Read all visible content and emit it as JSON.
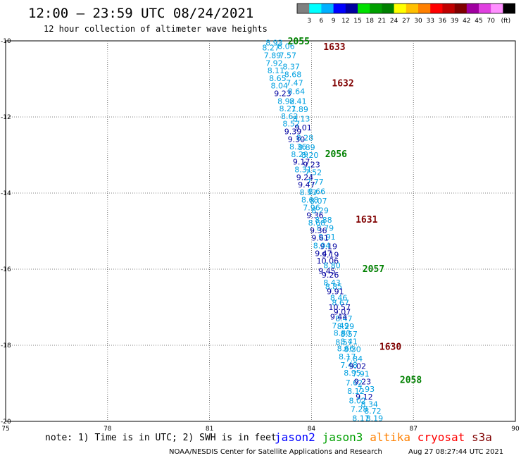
{
  "title": "12:00 – 23:59 UTC 08/24/2021",
  "subtitle": "12 hour collection of altimeter wave heights",
  "colorbar": {
    "colors": [
      "#808080",
      "#00ffff",
      "#00b0ff",
      "#0000ff",
      "#0000a0",
      "#00e000",
      "#00a000",
      "#008000",
      "#ffff00",
      "#ffc000",
      "#ff8000",
      "#ff0000",
      "#c00000",
      "#800000",
      "#a000a0",
      "#e040e0",
      "#ff90ff",
      "#000000"
    ],
    "labels": [
      "3",
      "6",
      "9",
      "12",
      "15",
      "18",
      "21",
      "24",
      "27",
      "30",
      "33",
      "36",
      "39",
      "42",
      "45",
      "70"
    ],
    "unit": "(ft)"
  },
  "note": "note: 1) Time is in UTC; 2) SWH is in feet",
  "satellites": [
    {
      "name": "jason2",
      "color": "#0000ff"
    },
    {
      "name": "jason3",
      "color": "#00a000"
    },
    {
      "name": "altika",
      "color": "#ff8000"
    },
    {
      "name": "cryosat",
      "color": "#ff0000"
    },
    {
      "name": "s3a",
      "color": "#800000"
    }
  ],
  "credit": "NOAA/NESDIS Center for Satellite Applications and Research",
  "timestamp": "Aug 27 08:27:44 UTC 2021",
  "chart_data": {
    "type": "scatter",
    "xlim": [
      75,
      90
    ],
    "ylim": [
      -20,
      -10
    ],
    "x_ticks": [
      "75",
      "78",
      "81",
      "84",
      "87",
      "90"
    ],
    "y_ticks": [
      "-10",
      "-12",
      "-14",
      "-16",
      "-18",
      "-20"
    ],
    "grid": true,
    "light_color": "#00a0e0",
    "dark_color": "#0000a0",
    "points": [
      {
        "x": 82.65,
        "y": -10.05,
        "v": "8.93",
        "c": "light"
      },
      {
        "x": 83.0,
        "y": -10.14,
        "v": "8.06",
        "c": "light"
      },
      {
        "x": 82.55,
        "y": -10.18,
        "v": "8.27",
        "c": "light"
      },
      {
        "x": 82.6,
        "y": -10.38,
        "v": "7.89",
        "c": "light"
      },
      {
        "x": 83.05,
        "y": -10.38,
        "v": "7.57",
        "c": "light"
      },
      {
        "x": 82.65,
        "y": -10.58,
        "v": "7.92",
        "c": "light"
      },
      {
        "x": 83.15,
        "y": -10.68,
        "v": "8.37",
        "c": "light"
      },
      {
        "x": 82.7,
        "y": -10.78,
        "v": "8.11",
        "c": "light"
      },
      {
        "x": 83.2,
        "y": -10.88,
        "v": "8.68",
        "c": "light"
      },
      {
        "x": 82.75,
        "y": -10.98,
        "v": "8.65",
        "c": "light"
      },
      {
        "x": 83.25,
        "y": -11.1,
        "v": "7.47",
        "c": "light"
      },
      {
        "x": 82.8,
        "y": -11.18,
        "v": "8.04",
        "c": "light"
      },
      {
        "x": 82.9,
        "y": -11.38,
        "v": "9.23",
        "c": "dark"
      },
      {
        "x": 83.3,
        "y": -11.32,
        "v": "8.64",
        "c": "light"
      },
      {
        "x": 83.0,
        "y": -11.58,
        "v": "8.92",
        "c": "light"
      },
      {
        "x": 83.35,
        "y": -11.58,
        "v": "8.41",
        "c": "light"
      },
      {
        "x": 83.05,
        "y": -11.78,
        "v": "8.21",
        "c": "light"
      },
      {
        "x": 83.4,
        "y": -11.8,
        "v": "7.89",
        "c": "light"
      },
      {
        "x": 83.1,
        "y": -11.98,
        "v": "8.62",
        "c": "light"
      },
      {
        "x": 83.45,
        "y": -12.05,
        "v": "8.13",
        "c": "light"
      },
      {
        "x": 83.15,
        "y": -12.18,
        "v": "8.52",
        "c": "light"
      },
      {
        "x": 83.5,
        "y": -12.28,
        "v": "9.01",
        "c": "dark"
      },
      {
        "x": 83.2,
        "y": -12.38,
        "v": "9.39",
        "c": "dark"
      },
      {
        "x": 83.55,
        "y": -12.55,
        "v": "8.28",
        "c": "light"
      },
      {
        "x": 83.3,
        "y": -12.58,
        "v": "9.30",
        "c": "dark"
      },
      {
        "x": 83.35,
        "y": -12.78,
        "v": "8.36",
        "c": "light"
      },
      {
        "x": 83.6,
        "y": -12.8,
        "v": "8.89",
        "c": "light"
      },
      {
        "x": 83.4,
        "y": -12.98,
        "v": "8.29",
        "c": "light"
      },
      {
        "x": 83.7,
        "y": -13.0,
        "v": "8.20",
        "c": "light"
      },
      {
        "x": 83.45,
        "y": -13.18,
        "v": "9.17",
        "c": "dark"
      },
      {
        "x": 83.75,
        "y": -13.25,
        "v": "9.23",
        "c": "dark"
      },
      {
        "x": 83.5,
        "y": -13.38,
        "v": "8.31",
        "c": "light"
      },
      {
        "x": 83.8,
        "y": -13.45,
        "v": "7.52",
        "c": "light"
      },
      {
        "x": 83.55,
        "y": -13.58,
        "v": "9.24",
        "c": "dark"
      },
      {
        "x": 83.85,
        "y": -13.7,
        "v": "7.77",
        "c": "light"
      },
      {
        "x": 83.6,
        "y": -13.78,
        "v": "9.47",
        "c": "dark"
      },
      {
        "x": 83.9,
        "y": -13.95,
        "v": "8.66",
        "c": "light"
      },
      {
        "x": 83.65,
        "y": -13.98,
        "v": "8.53",
        "c": "light"
      },
      {
        "x": 83.95,
        "y": -14.2,
        "v": "8.07",
        "c": "light"
      },
      {
        "x": 83.7,
        "y": -14.18,
        "v": "8.68",
        "c": "light"
      },
      {
        "x": 83.75,
        "y": -14.38,
        "v": "7.96",
        "c": "light"
      },
      {
        "x": 84.0,
        "y": -14.45,
        "v": "8.29",
        "c": "light"
      },
      {
        "x": 83.85,
        "y": -14.58,
        "v": "9.36",
        "c": "dark"
      },
      {
        "x": 84.1,
        "y": -14.7,
        "v": "8.88",
        "c": "light"
      },
      {
        "x": 83.9,
        "y": -14.78,
        "v": "8.68",
        "c": "light"
      },
      {
        "x": 84.15,
        "y": -14.92,
        "v": "8.79",
        "c": "light"
      },
      {
        "x": 83.95,
        "y": -14.98,
        "v": "9.36",
        "c": "dark"
      },
      {
        "x": 84.2,
        "y": -15.15,
        "v": "9.91",
        "c": "light"
      },
      {
        "x": 84.0,
        "y": -15.18,
        "v": "9.61",
        "c": "dark"
      },
      {
        "x": 84.25,
        "y": -15.4,
        "v": "9.19",
        "c": "dark"
      },
      {
        "x": 84.05,
        "y": -15.38,
        "v": "8.94",
        "c": "light"
      },
      {
        "x": 84.1,
        "y": -15.58,
        "v": "9.47",
        "c": "dark"
      },
      {
        "x": 84.3,
        "y": -15.62,
        "v": "9.19",
        "c": "dark"
      },
      {
        "x": 84.15,
        "y": -15.78,
        "v": "10.06",
        "c": "dark"
      },
      {
        "x": 84.35,
        "y": -15.9,
        "v": "8.80",
        "c": "light"
      },
      {
        "x": 84.2,
        "y": -16.05,
        "v": "9.45",
        "c": "dark"
      },
      {
        "x": 84.3,
        "y": -16.15,
        "v": "9.26",
        "c": "dark"
      },
      {
        "x": 84.35,
        "y": -16.35,
        "v": "8.43",
        "c": "light"
      },
      {
        "x": 84.4,
        "y": -16.45,
        "v": "8.85",
        "c": "light"
      },
      {
        "x": 84.45,
        "y": -16.58,
        "v": "9.91",
        "c": "dark"
      },
      {
        "x": 84.55,
        "y": -16.75,
        "v": "8.46",
        "c": "light"
      },
      {
        "x": 84.6,
        "y": -16.88,
        "v": "8.67",
        "c": "light"
      },
      {
        "x": 84.5,
        "y": -17.0,
        "v": "10.57",
        "c": "dark"
      },
      {
        "x": 84.65,
        "y": -17.12,
        "v": "9.07",
        "c": "dark"
      },
      {
        "x": 84.7,
        "y": -17.3,
        "v": "8.47",
        "c": "light"
      },
      {
        "x": 84.55,
        "y": -17.25,
        "v": "9.44",
        "c": "dark"
      },
      {
        "x": 84.75,
        "y": -17.5,
        "v": "8.29",
        "c": "light"
      },
      {
        "x": 84.6,
        "y": -17.48,
        "v": "7.49",
        "c": "light"
      },
      {
        "x": 84.65,
        "y": -17.68,
        "v": "8.80",
        "c": "light"
      },
      {
        "x": 84.85,
        "y": -17.7,
        "v": "8.57",
        "c": "light"
      },
      {
        "x": 84.7,
        "y": -17.92,
        "v": "8.57",
        "c": "light"
      },
      {
        "x": 84.85,
        "y": -17.9,
        "v": "8.41",
        "c": "light"
      },
      {
        "x": 84.75,
        "y": -18.08,
        "v": "8.66",
        "c": "light"
      },
      {
        "x": 84.95,
        "y": -18.1,
        "v": "8.30",
        "c": "light"
      },
      {
        "x": 84.8,
        "y": -18.3,
        "v": "8.17",
        "c": "light"
      },
      {
        "x": 85.0,
        "y": -18.35,
        "v": "7.84",
        "c": "light"
      },
      {
        "x": 84.85,
        "y": -18.52,
        "v": "7.48",
        "c": "light"
      },
      {
        "x": 85.1,
        "y": -18.55,
        "v": "9.02",
        "c": "dark"
      },
      {
        "x": 84.95,
        "y": -18.72,
        "v": "8.95",
        "c": "light"
      },
      {
        "x": 85.2,
        "y": -18.75,
        "v": "7.91",
        "c": "light"
      },
      {
        "x": 85.0,
        "y": -18.98,
        "v": "7.62",
        "c": "light"
      },
      {
        "x": 85.25,
        "y": -18.95,
        "v": "9.23",
        "c": "dark"
      },
      {
        "x": 85.35,
        "y": -19.15,
        "v": "7.93",
        "c": "light"
      },
      {
        "x": 85.05,
        "y": -19.2,
        "v": "8.12",
        "c": "light"
      },
      {
        "x": 85.3,
        "y": -19.35,
        "v": "9.12",
        "c": "dark"
      },
      {
        "x": 85.1,
        "y": -19.45,
        "v": "8.02",
        "c": "light"
      },
      {
        "x": 85.45,
        "y": -19.55,
        "v": "8.34",
        "c": "light"
      },
      {
        "x": 85.15,
        "y": -19.68,
        "v": "7.28",
        "c": "light"
      },
      {
        "x": 85.55,
        "y": -19.72,
        "v": "8.72",
        "c": "light"
      },
      {
        "x": 85.2,
        "y": -19.92,
        "v": "8.17",
        "c": "light"
      },
      {
        "x": 85.6,
        "y": -19.92,
        "v": "8.19",
        "c": "light"
      }
    ],
    "pass_labels": [
      {
        "x": 83.3,
        "y": -10.02,
        "t": "2055",
        "c": "#008000"
      },
      {
        "x": 84.35,
        "y": -10.17,
        "t": "1633",
        "c": "#800000"
      },
      {
        "x": 84.6,
        "y": -11.12,
        "t": "1632",
        "c": "#800000"
      },
      {
        "x": 84.4,
        "y": -12.98,
        "t": "2056",
        "c": "#008000"
      },
      {
        "x": 85.3,
        "y": -14.7,
        "t": "1631",
        "c": "#800000"
      },
      {
        "x": 85.5,
        "y": -16.0,
        "t": "2057",
        "c": "#008000"
      },
      {
        "x": 86.0,
        "y": -18.05,
        "t": "1630",
        "c": "#800000"
      },
      {
        "x": 86.6,
        "y": -18.92,
        "t": "2058",
        "c": "#008000"
      }
    ]
  }
}
